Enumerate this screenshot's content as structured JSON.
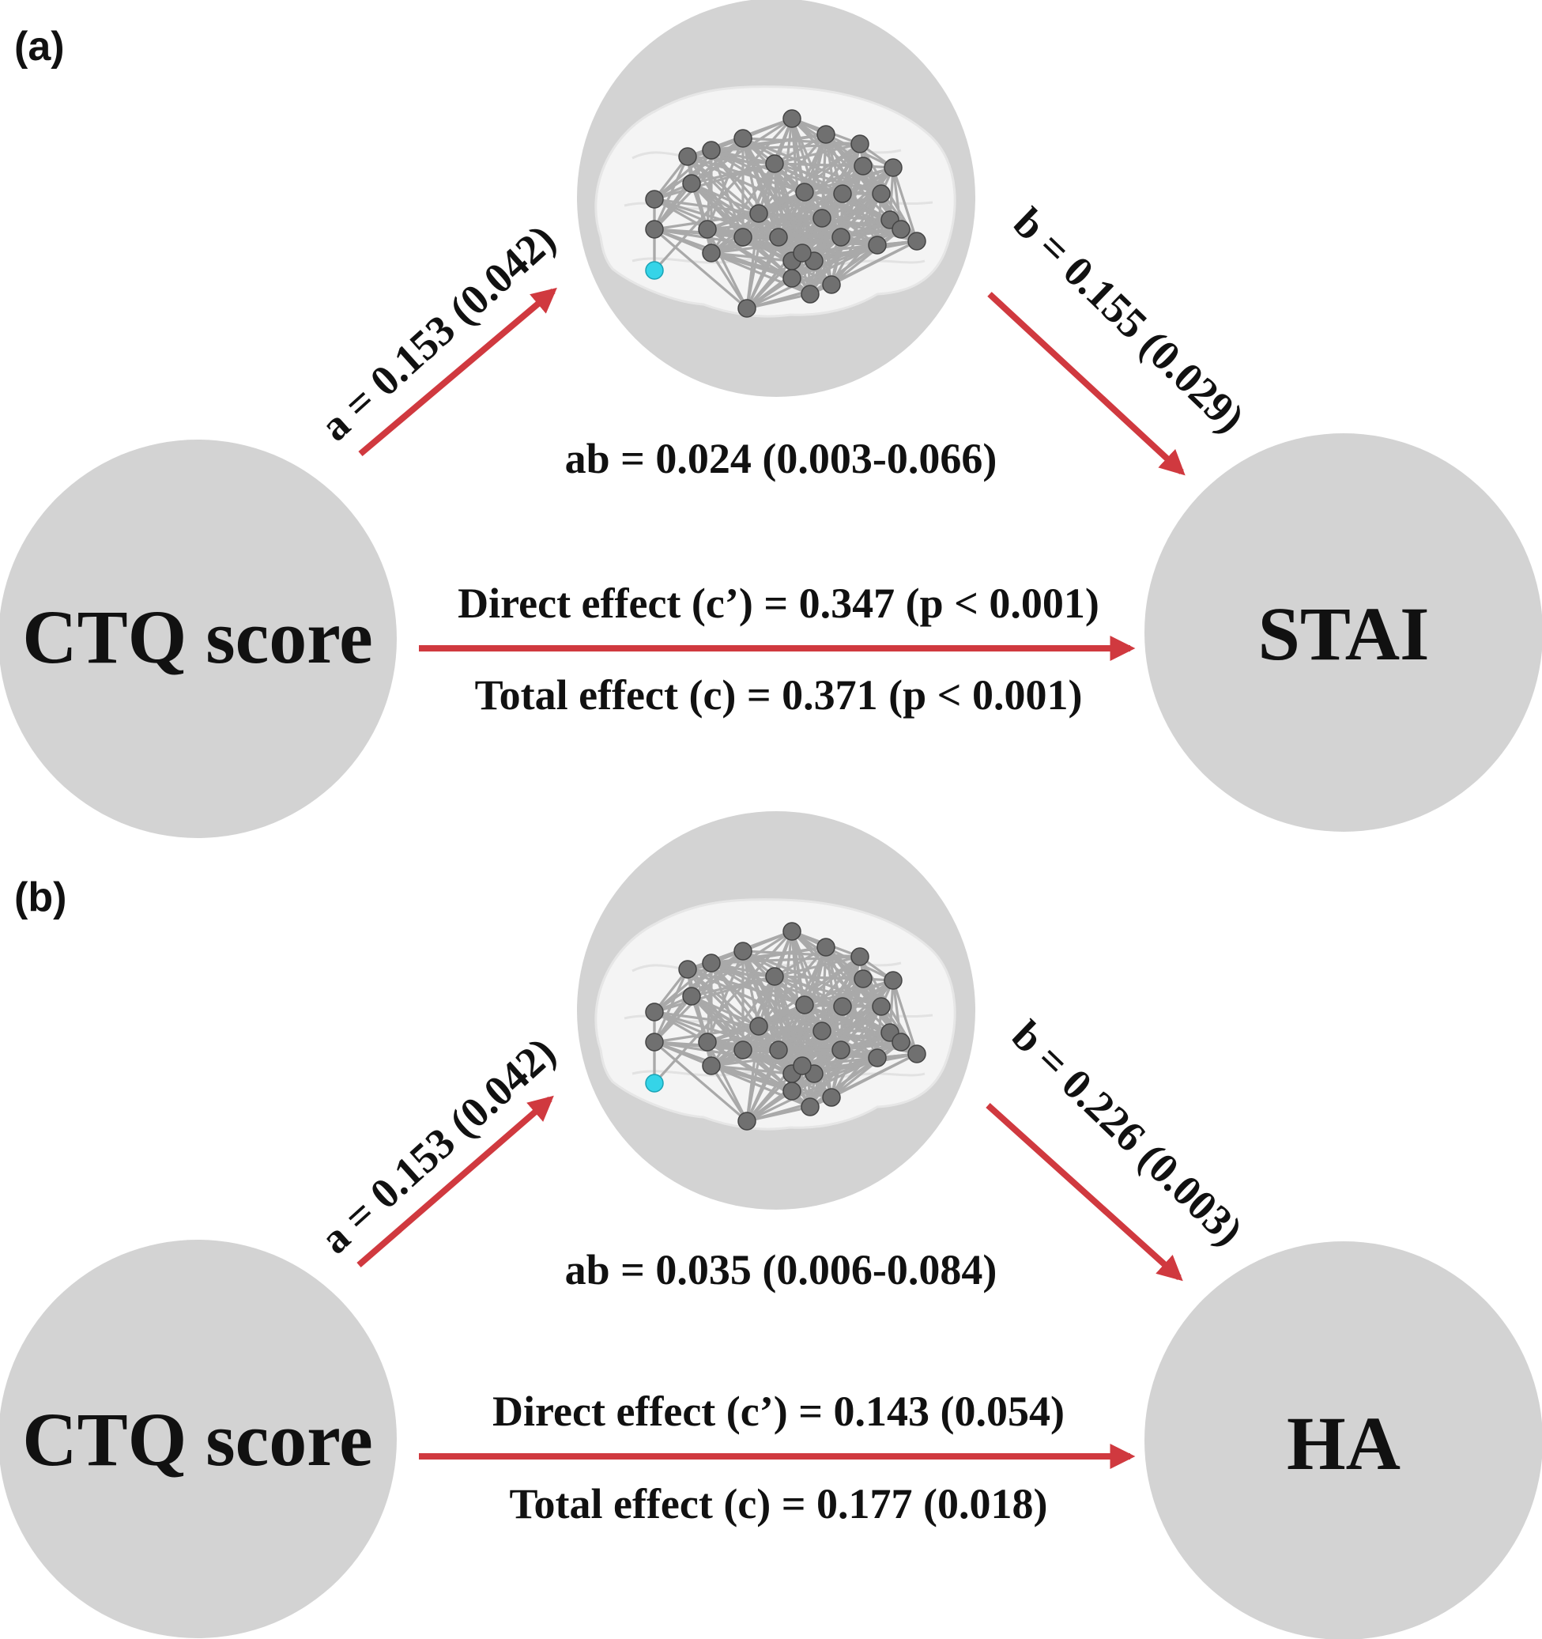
{
  "colors": {
    "node_fill": "#d3d3d3",
    "arrow": "#d0393f",
    "network_node": "#707070",
    "highlight_node": "#35d4e8",
    "text": "#111111"
  },
  "panels": [
    {
      "label": "(a)",
      "predictor": "CTQ score",
      "outcome": "STAI",
      "path_a": "a = 0.153 (0.042)",
      "path_b": "b = 0.155 (0.029)",
      "indirect": "ab = 0.024 (0.003-0.066)",
      "direct": "Direct effect (c’) = 0.347 (p < 0.001)",
      "total": "Total effect (c) = 0.371 (p < 0.001)",
      "mediator_icon": "brain-network-icon"
    },
    {
      "label": "(b)",
      "predictor": "CTQ score",
      "outcome": "HA",
      "path_a": "a = 0.153 (0.042)",
      "path_b": "b = 0.226 (0.003)",
      "indirect": "ab = 0.035 (0.006-0.084)",
      "direct": "Direct effect (c’) = 0.143 (0.054)",
      "total": "Total effect (c) = 0.177 (0.018)",
      "mediator_icon": "brain-network-icon"
    }
  ]
}
